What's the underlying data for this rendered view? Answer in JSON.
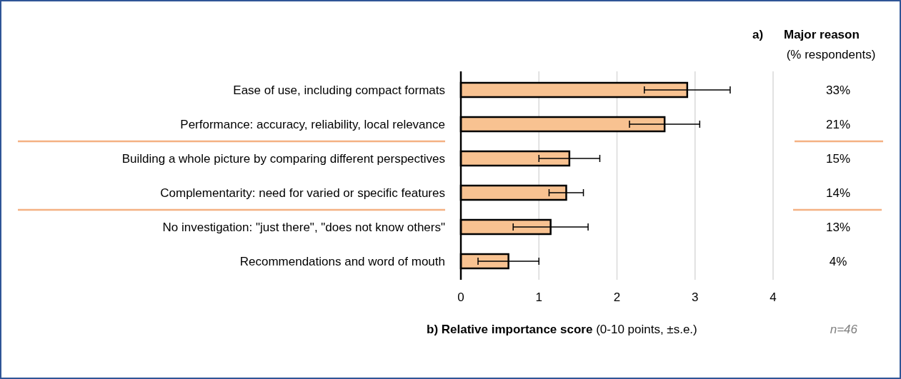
{
  "chart_data": [
    {
      "type": "bar",
      "orientation": "horizontal",
      "categories": [
        "Ease of use, including compact formats",
        "Performance: accuracy, reliability, local relevance",
        "Building a whole picture by comparing different perspectives",
        "Complementarity: need for varied or specific features",
        "No investigation: \"just there\", \"does not know others\"",
        "Recommendations and word of mouth"
      ],
      "values": [
        2.9,
        2.61,
        1.39,
        1.35,
        1.15,
        0.61
      ],
      "errors": [
        0.55,
        0.45,
        0.39,
        0.22,
        0.48,
        0.39
      ],
      "color": "#f8c291",
      "xlim": [
        0,
        4
      ],
      "xticks": [
        0,
        1,
        2,
        3,
        4
      ],
      "grid": "x",
      "xlabel": "b) Relative importance score (0-10 points, ±s.e.)",
      "annotations": [
        "n=46"
      ]
    },
    {
      "type": "other",
      "title": "a) Major reason",
      "subtitle": "(% respondents)",
      "categories": [
        null,
        null,
        null,
        null,
        null,
        null
      ],
      "values": [
        33,
        21,
        15,
        14,
        13,
        4
      ],
      "value_labels": [
        "33%",
        "21%",
        "15%",
        "14%",
        "13%",
        "4%"
      ]
    }
  ]
}
